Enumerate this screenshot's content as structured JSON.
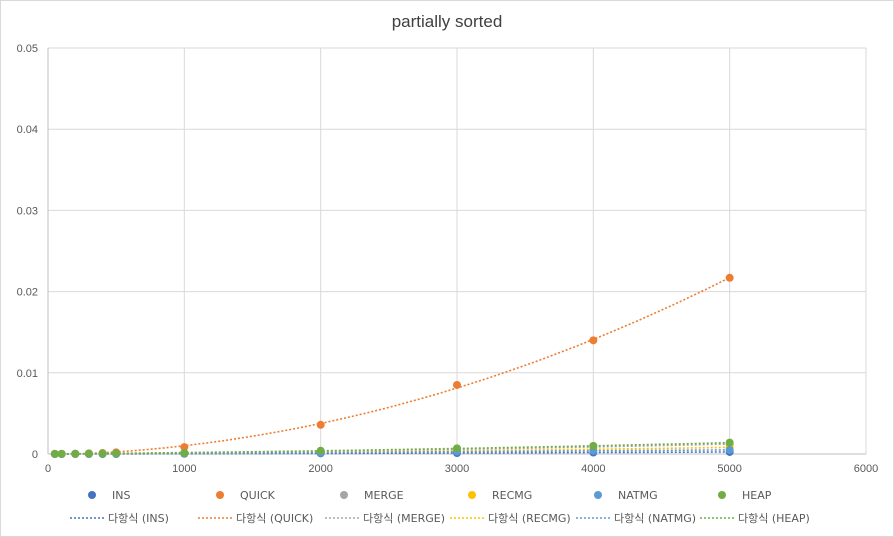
{
  "chart_data": {
    "type": "scatter",
    "title": "partially sorted",
    "xlim": [
      0,
      6000
    ],
    "ylim": [
      0,
      0.05
    ],
    "x_ticks": [
      0,
      1000,
      2000,
      3000,
      4000,
      5000,
      6000
    ],
    "y_ticks": [
      0,
      0.01,
      0.02,
      0.03,
      0.04,
      0.05
    ],
    "y_tick_labels": [
      "0",
      "0.01",
      "0.02",
      "0.03",
      "0.04",
      "0.05"
    ],
    "grid": true,
    "legend_position": "bottom",
    "trendline_label_prefix": "다항식",
    "x": [
      50,
      100,
      200,
      300,
      400,
      500,
      1000,
      2000,
      3000,
      4000,
      5000
    ],
    "series": [
      {
        "name": "INS",
        "color": "#4472c4",
        "values": [
          0,
          0,
          0,
          0,
          0,
          0,
          3e-05,
          8e-05,
          0.00012,
          0.00018,
          0.00025
        ]
      },
      {
        "name": "QUICK",
        "color": "#ed7d31",
        "values": [
          2e-06,
          8e-06,
          3e-05,
          7e-05,
          0.00012,
          0.0002,
          0.00085,
          0.0036,
          0.0085,
          0.014,
          0.0217
        ]
      },
      {
        "name": "MERGE",
        "color": "#a5a5a5",
        "values": [
          1e-05,
          1e-05,
          2e-05,
          3e-05,
          4e-05,
          5e-05,
          0.0001,
          0.0003,
          0.0006,
          0.0009,
          0.0012
        ]
      },
      {
        "name": "RECMG",
        "color": "#ffc000",
        "values": [
          1e-05,
          1e-05,
          2e-05,
          3e-05,
          4e-05,
          4e-05,
          8e-05,
          0.0002,
          0.0004,
          0.0006,
          0.0008
        ]
      },
      {
        "name": "NATMG",
        "color": "#5b9bd5",
        "values": [
          1e-05,
          1e-05,
          2e-05,
          3e-05,
          3e-05,
          4e-05,
          8e-05,
          0.00015,
          0.0003,
          0.0004,
          0.0005
        ]
      },
      {
        "name": "HEAP",
        "color": "#70ad47",
        "values": [
          1e-05,
          2e-05,
          3e-05,
          5e-05,
          6e-05,
          8e-05,
          0.00015,
          0.0004,
          0.0007,
          0.001,
          0.0014
        ]
      }
    ]
  }
}
